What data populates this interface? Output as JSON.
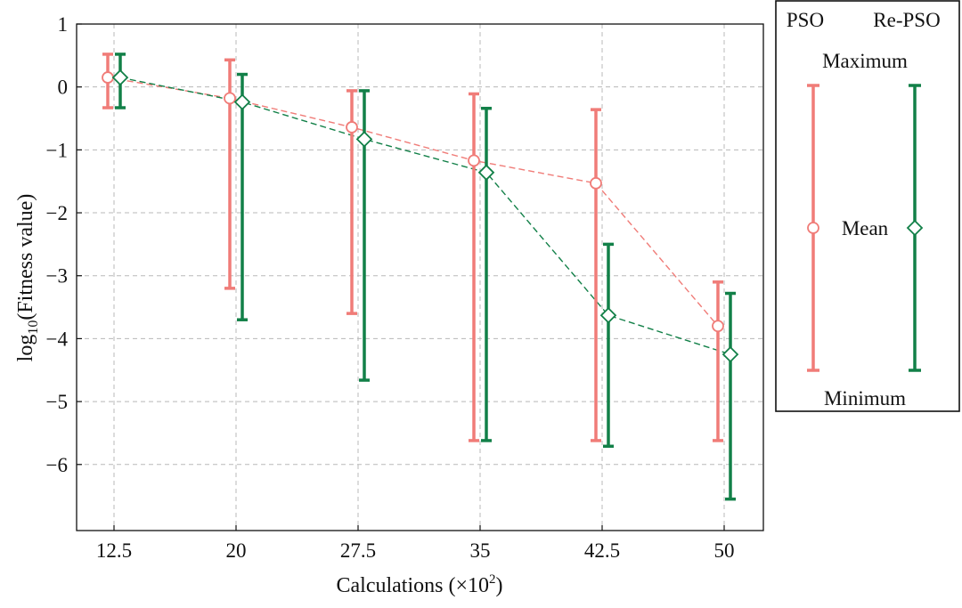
{
  "chart_data": {
    "type": "errorbar-line",
    "xlabel": "Calculations (×10",
    "xlabel_sup": "2",
    "xlabel_close": ")",
    "ylabel_prefix": "log",
    "ylabel_sub": "10",
    "ylabel_rest": "(Fitness value)",
    "categories": [
      "12.5",
      "20",
      "27.5",
      "35",
      "42.5",
      "50"
    ],
    "ylim": [
      -7.05,
      1
    ],
    "yticks": [
      1,
      0,
      -1,
      -2,
      -3,
      -4,
      -5,
      -6
    ],
    "ytick_labels": [
      "1",
      "0",
      "−1",
      "−2",
      "−3",
      "−4",
      "−5",
      "−6"
    ],
    "grid": true,
    "series": [
      {
        "name": "PSO",
        "color": "#F07C78",
        "marker": "circle",
        "line_style": "dashed",
        "mean": [
          0.15,
          -0.18,
          -0.64,
          -1.17,
          -1.53,
          -3.8
        ],
        "max": [
          0.52,
          0.43,
          -0.06,
          -0.11,
          -0.36,
          -3.1
        ],
        "min": [
          -0.33,
          -3.2,
          -3.6,
          -5.62,
          -5.62,
          -5.62
        ]
      },
      {
        "name": "Re-PSO",
        "color": "#128048",
        "marker": "diamond",
        "line_style": "dashed",
        "mean": [
          0.15,
          -0.24,
          -0.83,
          -1.36,
          -3.63,
          -4.25
        ],
        "max": [
          0.52,
          0.2,
          -0.06,
          -0.34,
          -2.5,
          -3.28
        ],
        "min": [
          -0.33,
          -3.7,
          -4.66,
          -5.62,
          -5.71,
          -6.55
        ]
      }
    ],
    "legend": {
      "placement": "right",
      "entries": [
        "PSO",
        "Re-PSO"
      ],
      "maximum_label": "Maximum",
      "mean_label": "Mean",
      "minimum_label": "Minimum"
    }
  }
}
